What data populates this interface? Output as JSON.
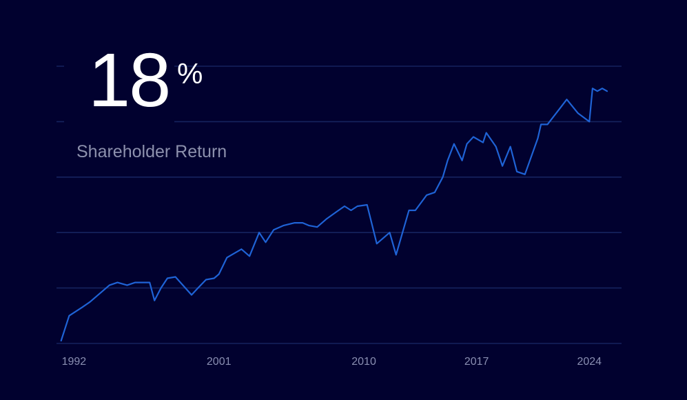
{
  "kpi": {
    "value": "18",
    "unit": "%",
    "label": "Shareholder Return"
  },
  "colors": {
    "background": "#01012f",
    "line": "#1f63d6",
    "grid": "#16235f",
    "tick_text": "#8a8fb2",
    "kpi_text": "#ffffff",
    "kpi_label": "#8d91ad"
  },
  "chart_data": {
    "type": "line",
    "title": "",
    "xlabel": "",
    "ylabel": "",
    "grid": true,
    "legend": "none",
    "xlim": [
      1991,
      2026
    ],
    "ylim": [
      0,
      100
    ],
    "y_gridlines": [
      0,
      20,
      40,
      60,
      80,
      100
    ],
    "x_ticks": [
      1992,
      2001,
      2010,
      2017,
      2024
    ],
    "series": [
      {
        "x": [
          1991.2,
          1991.7,
          1992.5,
          1993.0,
          1993.6,
          1994.2,
          1994.7,
          1995.3,
          1995.8,
          1996.2,
          1996.7,
          1997.0,
          1997.4,
          1997.8,
          1998.3,
          1999.3,
          1999.7,
          2000.2,
          2000.7,
          2001.0,
          2001.5,
          2002.4,
          2002.9,
          2003.5,
          2003.9,
          2004.4,
          2005.0,
          2005.7,
          2006.2,
          2006.6,
          2007.1,
          2007.7,
          2008.3,
          2008.8,
          2009.2,
          2009.6,
          2010.2,
          2010.8,
          2011.6,
          2012.0,
          2012.8,
          2013.2,
          2013.9,
          2014.4,
          2014.9,
          2015.2,
          2015.6,
          2016.1,
          2016.4,
          2016.8,
          2017.4,
          2017.6,
          2018.2,
          2018.6,
          2019.1,
          2019.5,
          2020.0,
          2020.8,
          2021.0,
          2021.4,
          2022.2,
          2022.6,
          2023.3,
          2024.0,
          2024.2,
          2024.5,
          2024.8,
          2025.1
        ],
        "values": [
          1,
          10,
          13,
          15,
          18,
          21,
          22,
          21,
          22,
          22,
          22,
          15.5,
          20,
          23.5,
          24,
          17.5,
          20,
          23,
          23.5,
          25,
          31,
          34,
          31.5,
          40,
          36.5,
          41,
          42.5,
          43.5,
          43.5,
          42.5,
          42,
          45,
          47.5,
          49.5,
          48,
          49.5,
          50,
          36,
          40,
          32,
          48,
          48,
          53.5,
          54.5,
          60,
          66,
          72,
          66,
          72,
          74.5,
          72.5,
          76,
          71,
          64,
          71,
          62,
          61,
          74,
          79,
          79,
          85,
          88,
          83,
          80,
          92,
          91,
          92,
          91
        ]
      }
    ]
  }
}
